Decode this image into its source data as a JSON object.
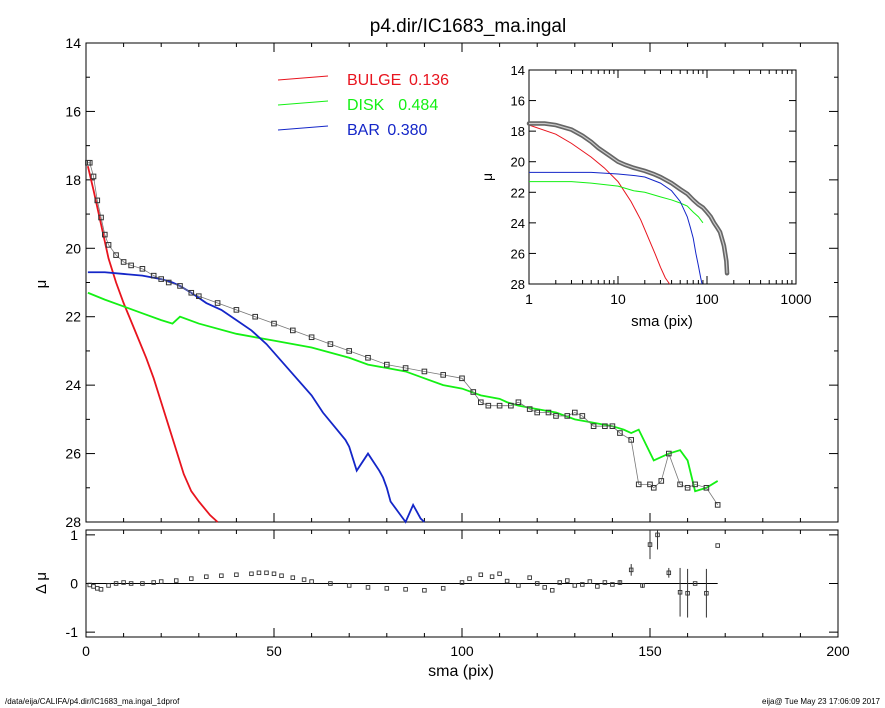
{
  "title": "p4.dir/IC1683_ma.ingal",
  "footer": {
    "path": "/data/eija/CALIFA/p4.dir/IC1683_ma.ingal_1dprof",
    "stamp": "eija@  Tue May 23 17:06:09 2017"
  },
  "colors": {
    "bulge": "#e8141e",
    "disk": "#14f014",
    "bar": "#1426c8",
    "obs": "#555555",
    "frame": "#000000"
  },
  "chart_data": [
    {
      "type": "line",
      "panel": "main",
      "ylabel": "μ",
      "ylim": [
        28,
        14
      ],
      "xlim": [
        0,
        200
      ],
      "yticks": [
        14,
        16,
        18,
        20,
        22,
        24,
        26,
        28
      ],
      "legend": [
        {
          "name": "BULGE",
          "value": "0.136"
        },
        {
          "name": "DISK",
          "value": "0.484"
        },
        {
          "name": "BAR",
          "value": "0.380"
        }
      ],
      "series": [
        {
          "name": "BULGE",
          "x": [
            0.5,
            2,
            4,
            6,
            8,
            10,
            13,
            16,
            18,
            20,
            22,
            24,
            26,
            28,
            30,
            33,
            35
          ],
          "y": [
            17.6,
            18.3,
            19.3,
            20.3,
            21.0,
            21.6,
            22.4,
            23.2,
            23.8,
            24.5,
            25.2,
            25.9,
            26.6,
            27.1,
            27.4,
            27.8,
            28.0
          ]
        },
        {
          "name": "DISK",
          "x": [
            0.5,
            5,
            10,
            15,
            20,
            23,
            25,
            30,
            40,
            50,
            60,
            70,
            75,
            80,
            85,
            90,
            95,
            100,
            105,
            110,
            112,
            115,
            120,
            125,
            130,
            135,
            140,
            143,
            145,
            147,
            151,
            155,
            158,
            160,
            162,
            165,
            168
          ],
          "y": [
            21.3,
            21.5,
            21.7,
            21.9,
            22.1,
            22.2,
            22.0,
            22.2,
            22.5,
            22.7,
            22.9,
            23.2,
            23.4,
            23.5,
            23.6,
            23.8,
            24.0,
            24.1,
            24.3,
            24.4,
            24.5,
            24.6,
            24.7,
            24.8,
            25.0,
            25.1,
            25.2,
            25.3,
            25.4,
            25.3,
            26.2,
            26.0,
            25.9,
            26.2,
            27.1,
            27.0,
            26.8
          ]
        },
        {
          "name": "BAR",
          "x": [
            0.5,
            5,
            10,
            15,
            20,
            23,
            25,
            28,
            32,
            36,
            40,
            44,
            48,
            52,
            56,
            60,
            63,
            66,
            69,
            70,
            72,
            75,
            78,
            79,
            80,
            81,
            83,
            85,
            87,
            88,
            89,
            90
          ],
          "y": [
            20.7,
            20.7,
            20.75,
            20.8,
            20.9,
            21.0,
            21.1,
            21.3,
            21.6,
            21.8,
            22.1,
            22.4,
            22.8,
            23.3,
            23.8,
            24.3,
            24.8,
            25.2,
            25.6,
            25.8,
            26.5,
            26.0,
            26.5,
            26.7,
            27.0,
            27.4,
            27.7,
            28.0,
            27.5,
            27.7,
            27.9,
            28.0
          ]
        },
        {
          "name": "observed",
          "x": [
            0.5,
            1,
            2,
            3,
            4,
            5,
            6,
            8,
            10,
            12,
            15,
            18,
            20,
            22,
            25,
            28,
            30,
            35,
            40,
            45,
            50,
            55,
            60,
            65,
            70,
            75,
            80,
            85,
            90,
            95,
            100,
            103,
            105,
            107,
            110,
            113,
            115,
            118,
            120,
            123,
            125,
            128,
            130,
            132,
            135,
            138,
            140,
            142,
            145,
            147,
            150,
            151,
            153,
            155,
            158,
            160,
            162,
            165,
            168
          ],
          "y": [
            17.5,
            17.5,
            17.9,
            18.6,
            19.1,
            19.6,
            19.9,
            20.2,
            20.4,
            20.5,
            20.6,
            20.8,
            20.9,
            21.0,
            21.1,
            21.3,
            21.4,
            21.6,
            21.8,
            22.0,
            22.2,
            22.4,
            22.6,
            22.8,
            23.0,
            23.2,
            23.4,
            23.5,
            23.6,
            23.7,
            23.8,
            24.2,
            24.5,
            24.6,
            24.6,
            24.6,
            24.5,
            24.7,
            24.8,
            24.8,
            24.9,
            24.9,
            24.8,
            24.9,
            25.2,
            25.2,
            25.2,
            25.4,
            25.6,
            26.9,
            26.9,
            27.0,
            26.8,
            26.0,
            26.9,
            27.0,
            26.9,
            27.0,
            27.5
          ]
        }
      ]
    },
    {
      "type": "scatter",
      "panel": "residual",
      "xlabel": "sma (pix)",
      "ylabel": "Δ μ",
      "xlim": [
        0,
        200
      ],
      "ylim": [
        -1.1,
        1.1
      ],
      "xticks": [
        0,
        50,
        100,
        150,
        200
      ],
      "yticks": [
        -1,
        0,
        1
      ],
      "series": [
        {
          "name": "residual",
          "x": [
            1,
            2,
            3,
            4,
            6,
            8,
            10,
            12,
            15,
            18,
            20,
            24,
            28,
            32,
            36,
            40,
            44,
            46,
            48,
            50,
            52,
            55,
            58,
            60,
            65,
            70,
            75,
            80,
            85,
            90,
            95,
            100,
            102,
            105,
            108,
            110,
            112,
            115,
            118,
            120,
            122,
            124,
            126,
            128,
            130,
            132,
            134,
            136,
            138,
            140,
            142,
            145,
            148,
            150,
            152,
            155,
            158,
            160,
            162,
            165,
            168
          ],
          "y": [
            -0.03,
            -0.06,
            -0.1,
            -0.12,
            -0.04,
            0.0,
            0.02,
            0.0,
            0.0,
            0.02,
            0.04,
            0.06,
            0.1,
            0.14,
            0.16,
            0.18,
            0.2,
            0.22,
            0.22,
            0.2,
            0.16,
            0.12,
            0.08,
            0.04,
            0.0,
            -0.04,
            -0.08,
            -0.1,
            -0.12,
            -0.14,
            -0.1,
            0.02,
            0.1,
            0.18,
            0.14,
            0.2,
            0.05,
            -0.04,
            0.12,
            0.0,
            -0.08,
            -0.14,
            0.02,
            0.06,
            -0.04,
            -0.02,
            0.04,
            -0.06,
            0.02,
            -0.02,
            0.02,
            0.28,
            -0.04,
            0.8,
            1.0,
            0.22,
            -0.18,
            -0.2,
            0.0,
            -0.2,
            0.78
          ],
          "err": [
            0,
            0,
            0,
            0,
            0,
            0,
            0,
            0,
            0,
            0,
            0,
            0,
            0,
            0,
            0,
            0,
            0,
            0,
            0,
            0,
            0,
            0,
            0,
            0,
            0,
            0,
            0,
            0,
            0,
            0,
            0,
            0,
            0,
            0,
            0,
            0,
            0,
            0,
            0,
            0,
            0,
            0,
            0,
            0,
            0,
            0,
            0,
            0,
            0,
            0,
            0.05,
            0.12,
            0.05,
            0.3,
            0.3,
            0.1,
            0.5,
            0.5,
            0,
            0.5,
            0
          ]
        }
      ]
    },
    {
      "type": "line",
      "panel": "inset",
      "xlabel": "sma (pix)",
      "ylabel": "μ",
      "xscale": "log",
      "xlim": [
        1,
        1000
      ],
      "ylim": [
        28,
        14
      ],
      "xticks": [
        1,
        10,
        100,
        1000
      ],
      "yticks": [
        14,
        16,
        18,
        20,
        22,
        24,
        26,
        28
      ],
      "series": [
        {
          "name": "BULGE",
          "x": [
            1,
            2,
            3,
            5,
            7,
            10,
            14,
            18,
            22,
            26,
            30,
            34,
            38
          ],
          "y": [
            17.6,
            18.2,
            18.8,
            19.7,
            20.4,
            21.3,
            22.6,
            23.8,
            25.0,
            26.0,
            26.9,
            27.6,
            28.2
          ]
        },
        {
          "name": "DISK",
          "x": [
            1,
            3,
            5,
            10,
            15,
            20,
            30,
            40,
            50,
            60,
            70,
            80,
            90
          ],
          "y": [
            21.3,
            21.3,
            21.4,
            21.6,
            21.9,
            22.0,
            22.3,
            22.5,
            22.7,
            22.9,
            23.3,
            23.6,
            24.0
          ]
        },
        {
          "name": "BAR",
          "x": [
            1,
            3,
            5,
            10,
            15,
            20,
            30,
            40,
            50,
            60,
            65,
            70,
            75,
            80,
            85,
            88
          ],
          "y": [
            20.7,
            20.7,
            20.7,
            20.8,
            20.9,
            21.0,
            21.4,
            21.9,
            22.6,
            23.6,
            24.3,
            25.0,
            26.0,
            26.8,
            27.6,
            28.0
          ]
        },
        {
          "name": "observed",
          "x": [
            1,
            1.5,
            2,
            3,
            4,
            5,
            6,
            8,
            10,
            12,
            15,
            20,
            25,
            30,
            40,
            50,
            60,
            70,
            80,
            90,
            100,
            110,
            120,
            130,
            140,
            150,
            155,
            160,
            165,
            168
          ],
          "y": [
            17.5,
            17.5,
            17.6,
            17.9,
            18.3,
            18.7,
            19.1,
            19.6,
            20.0,
            20.2,
            20.4,
            20.6,
            20.8,
            21.0,
            21.4,
            21.8,
            22.1,
            22.5,
            22.8,
            23.0,
            23.3,
            23.6,
            24.0,
            24.3,
            24.6,
            25.2,
            25.5,
            26.0,
            26.5,
            27.3
          ]
        }
      ]
    }
  ]
}
